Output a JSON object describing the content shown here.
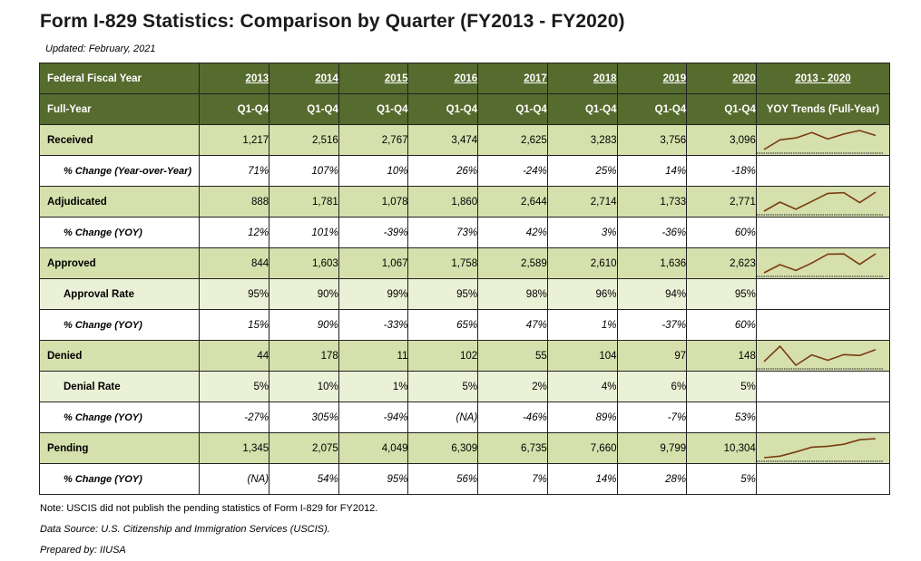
{
  "title": "Form I-829 Statistics: Comparison by Quarter (FY2013 - FY2020)",
  "updated": "Updated: February, 2021",
  "header": {
    "row1_label": "Federal Fiscal Year",
    "row2_label": "Full-Year",
    "years": [
      "2013",
      "2014",
      "2015",
      "2016",
      "2017",
      "2018",
      "2019",
      "2020"
    ],
    "quarter_label": "Q1-Q4",
    "trend_title": "2013 - 2020",
    "trend_subtitle": "YOY Trends (Full-Year)"
  },
  "rows": [
    {
      "label": "Received",
      "kind": "main",
      "values": [
        "1,217",
        "2,516",
        "2,767",
        "3,474",
        "2,625",
        "3,283",
        "3,756",
        "3,096"
      ],
      "sparkline": [
        1217,
        2516,
        2767,
        3474,
        2625,
        3283,
        3756,
        3096
      ]
    },
    {
      "label": "% Change (Year-over-Year)",
      "kind": "sub",
      "values": [
        "71%",
        "107%",
        "10%",
        "26%",
        "-24%",
        "25%",
        "14%",
        "-18%"
      ]
    },
    {
      "label": "Adjudicated",
      "kind": "main",
      "values": [
        "888",
        "1,781",
        "1,078",
        "1,860",
        "2,644",
        "2,714",
        "1,733",
        "2,771"
      ],
      "sparkline": [
        888,
        1781,
        1078,
        1860,
        2644,
        2714,
        1733,
        2771
      ]
    },
    {
      "label": "% Change (YOY)",
      "kind": "sub",
      "values": [
        "12%",
        "101%",
        "-39%",
        "73%",
        "42%",
        "3%",
        "-36%",
        "60%"
      ]
    },
    {
      "label": "Approved",
      "kind": "main",
      "values": [
        "844",
        "1,603",
        "1,067",
        "1,758",
        "2,589",
        "2,610",
        "1,636",
        "2,623"
      ],
      "sparkline": [
        844,
        1603,
        1067,
        1758,
        2589,
        2610,
        1636,
        2623
      ]
    },
    {
      "label": "Approval Rate",
      "kind": "rate",
      "values": [
        "95%",
        "90%",
        "99%",
        "95%",
        "98%",
        "96%",
        "94%",
        "95%"
      ]
    },
    {
      "label": "% Change (YOY)",
      "kind": "sub",
      "values": [
        "15%",
        "90%",
        "-33%",
        "65%",
        "47%",
        "1%",
        "-37%",
        "60%"
      ]
    },
    {
      "label": "Denied",
      "kind": "main",
      "values": [
        "44",
        "178",
        "11",
        "102",
        "55",
        "104",
        "97",
        "148"
      ],
      "sparkline": [
        44,
        178,
        11,
        102,
        55,
        104,
        97,
        148
      ]
    },
    {
      "label": "Denial Rate",
      "kind": "rate",
      "values": [
        "5%",
        "10%",
        "1%",
        "5%",
        "2%",
        "4%",
        "6%",
        "5%"
      ]
    },
    {
      "label": "% Change (YOY)",
      "kind": "sub",
      "values": [
        "-27%",
        "305%",
        "-94%",
        "(NA)",
        "-46%",
        "89%",
        "-7%",
        "53%"
      ]
    },
    {
      "label": "Pending",
      "kind": "main",
      "values": [
        "1,345",
        "2,075",
        "4,049",
        "6,309",
        "6,735",
        "7,660",
        "9,799",
        "10,304"
      ],
      "sparkline": [
        1345,
        2075,
        4049,
        6309,
        6735,
        7660,
        9799,
        10304
      ]
    },
    {
      "label": "% Change (YOY)",
      "kind": "sub",
      "values": [
        "(NA)",
        "54%",
        "95%",
        "56%",
        "7%",
        "14%",
        "28%",
        "5%"
      ]
    }
  ],
  "colors": {
    "header_bg": "#566b2e",
    "main_row_bg": "#d5e0ac",
    "rate_row_bg": "#ebf1d6",
    "sparkline": "#7a3b12"
  },
  "notes": {
    "note": "Note: USCIS did not publish the pending statistics of Form I-829 for FY2012.",
    "source": "Data Source: U.S. Citizenship and Immigration Services (USCIS).",
    "prepared": "Prepared by: IIUSA"
  }
}
